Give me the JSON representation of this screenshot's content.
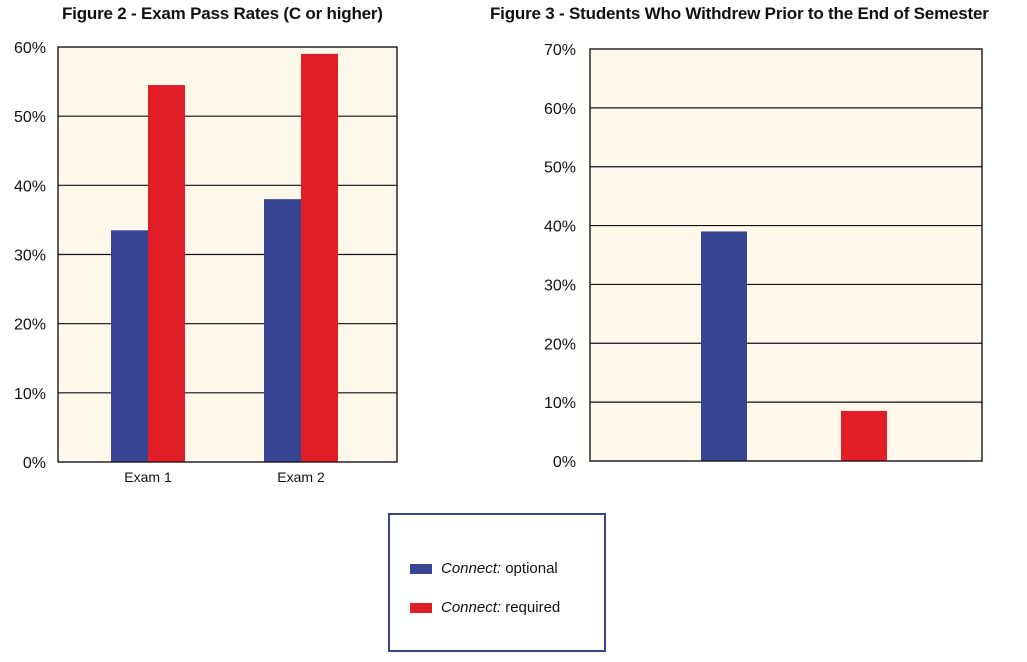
{
  "colors": {
    "plot_bg": "#fef8ea",
    "gridline": "#111111",
    "connect_optional": "#384494",
    "connect_required": "#e21d26",
    "legend_border": "#3b4293"
  },
  "legend": {
    "items": [
      {
        "italic": "Connect:",
        "text": " optional",
        "color": "#384494"
      },
      {
        "italic": "Connect:",
        "text": " required",
        "color": "#e21d26"
      }
    ]
  },
  "chart_data": [
    {
      "type": "bar",
      "title": "Figure 2 - Exam Pass Rates (C or higher)",
      "categories": [
        "Exam 1",
        "Exam 2"
      ],
      "series": [
        {
          "name": "Connect: optional",
          "values": [
            33.5,
            38.0
          ]
        },
        {
          "name": "Connect: required",
          "values": [
            54.5,
            59.0
          ]
        }
      ],
      "ylim": [
        0,
        60
      ],
      "yticks": [
        "0%",
        "10%",
        "20%",
        "30%",
        "40%",
        "50%",
        "60%"
      ],
      "grid": true,
      "legend_placement": "bottom-center"
    },
    {
      "type": "bar",
      "title": "Figure 3 - Students Who Withdrew Prior to the End of Semester",
      "categories": [
        "",
        ""
      ],
      "series": [
        {
          "name": "Connect: optional",
          "values": [
            39.0,
            null
          ]
        },
        {
          "name": "Connect: required",
          "values": [
            null,
            8.5
          ]
        }
      ],
      "ylim": [
        0,
        70
      ],
      "yticks": [
        "0%",
        "10%",
        "20%",
        "30%",
        "40%",
        "50%",
        "60%",
        "70%"
      ],
      "grid": true,
      "legend_placement": "bottom-center"
    }
  ]
}
